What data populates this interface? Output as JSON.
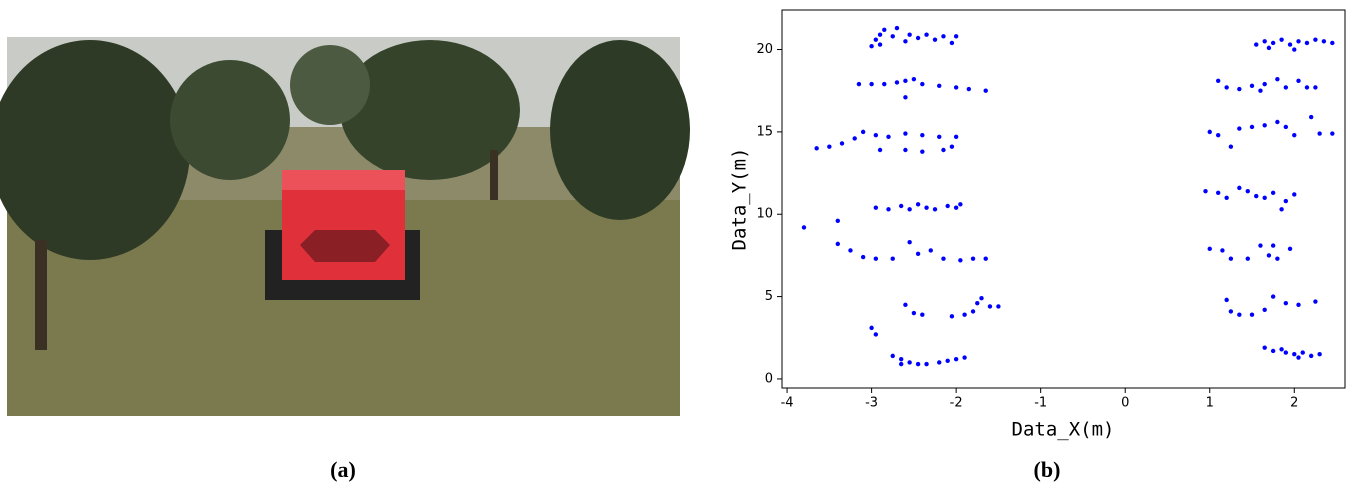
{
  "captions": {
    "a": "(a)",
    "b": "(b)"
  },
  "chart_data": {
    "type": "scatter",
    "xlabel": "Data_X(m)",
    "ylabel": "Data_Y(m)",
    "color": "#0000ff",
    "xlim": [
      -4.06,
      2.6
    ],
    "ylim": [
      -0.55,
      22.4
    ],
    "xticks": [
      -4,
      -3,
      -2,
      -1,
      0,
      1,
      2
    ],
    "yticks": [
      0,
      5,
      10,
      15,
      20
    ],
    "x": [
      -3.0,
      -2.95,
      -2.9,
      -2.85,
      -2.75,
      -2.7,
      -2.6,
      -2.55,
      -2.45,
      -2.35,
      -2.25,
      -2.15,
      -2.05,
      -2.0,
      -2.9,
      -3.15,
      -3.0,
      -2.85,
      -2.7,
      -2.6,
      -2.5,
      -2.6,
      -2.4,
      -2.2,
      -2.0,
      -1.85,
      -1.65,
      -3.65,
      -3.5,
      -3.35,
      -3.2,
      -3.1,
      -2.95,
      -2.8,
      -2.6,
      -2.4,
      -2.2,
      -2.0,
      -2.9,
      -2.6,
      -2.4,
      -2.15,
      -2.05,
      -3.8,
      -3.4,
      -2.95,
      -2.8,
      -2.65,
      -2.55,
      -2.45,
      -2.35,
      -2.25,
      -2.1,
      -2.0,
      -1.95,
      -3.4,
      -3.25,
      -3.1,
      -2.95,
      -2.75,
      -2.55,
      -2.45,
      -2.3,
      -2.15,
      -1.95,
      -1.8,
      -1.65,
      -3.0,
      -2.95,
      -2.6,
      -2.5,
      -2.4,
      -2.05,
      -1.9,
      -1.8,
      -1.7,
      -1.6,
      -1.5,
      -1.75,
      -2.75,
      -2.65,
      -2.55,
      -2.45,
      -2.35,
      -2.2,
      -2.1,
      -2.0,
      -2.65,
      -1.9,
      1.55,
      1.65,
      1.75,
      1.85,
      1.95,
      2.05,
      2.15,
      2.25,
      2.35,
      2.45,
      1.7,
      2.0,
      1.1,
      1.2,
      1.35,
      1.5,
      1.65,
      1.8,
      1.9,
      2.05,
      2.15,
      2.25,
      1.6,
      1.0,
      1.1,
      1.25,
      1.35,
      1.5,
      1.65,
      1.8,
      1.9,
      2.0,
      2.2,
      2.3,
      2.45,
      0.95,
      1.1,
      1.2,
      1.35,
      1.45,
      1.55,
      1.65,
      1.75,
      1.9,
      2.0,
      1.85,
      1.0,
      1.15,
      1.25,
      1.45,
      1.6,
      1.7,
      1.8,
      1.95,
      1.75,
      1.2,
      1.25,
      1.35,
      1.5,
      1.65,
      1.75,
      1.9,
      2.05,
      2.25,
      1.65,
      1.75,
      1.9,
      2.0,
      2.1,
      2.2,
      2.3,
      1.85,
      2.05
    ],
    "values": [
      20.2,
      20.6,
      20.9,
      21.2,
      20.8,
      21.3,
      20.5,
      20.9,
      20.7,
      20.9,
      20.6,
      20.8,
      20.4,
      20.8,
      20.3,
      17.9,
      17.9,
      17.9,
      18.0,
      18.1,
      18.2,
      17.1,
      17.9,
      17.8,
      17.7,
      17.6,
      17.5,
      14.0,
      14.1,
      14.3,
      14.6,
      15.0,
      14.8,
      14.7,
      14.9,
      14.8,
      14.7,
      14.7,
      13.9,
      13.9,
      13.8,
      13.9,
      14.1,
      9.2,
      9.6,
      10.4,
      10.3,
      10.5,
      10.3,
      10.6,
      10.4,
      10.3,
      10.5,
      10.4,
      10.6,
      8.2,
      7.8,
      7.4,
      7.3,
      7.3,
      8.3,
      7.6,
      7.8,
      7.3,
      7.2,
      7.3,
      7.3,
      3.1,
      2.7,
      4.5,
      4.0,
      3.9,
      3.8,
      3.9,
      4.1,
      4.9,
      4.4,
      4.4,
      4.6,
      1.4,
      1.2,
      1.0,
      0.9,
      0.9,
      1.0,
      1.1,
      1.2,
      0.9,
      1.3,
      20.3,
      20.5,
      20.4,
      20.6,
      20.3,
      20.5,
      20.4,
      20.6,
      20.5,
      20.4,
      20.1,
      20.0,
      18.1,
      17.7,
      17.6,
      17.8,
      17.9,
      18.2,
      17.7,
      18.1,
      17.7,
      17.7,
      17.5,
      15.0,
      14.8,
      14.1,
      15.2,
      15.3,
      15.4,
      15.6,
      15.3,
      14.8,
      15.9,
      14.9,
      14.9,
      11.4,
      11.3,
      11.0,
      11.6,
      11.4,
      11.1,
      11.0,
      11.3,
      10.8,
      11.2,
      10.3,
      7.9,
      7.8,
      7.3,
      7.3,
      8.1,
      7.5,
      7.3,
      7.9,
      8.1,
      4.8,
      4.1,
      3.9,
      3.9,
      4.2,
      5.0,
      4.6,
      4.5,
      4.7,
      1.9,
      1.7,
      1.6,
      1.5,
      1.6,
      1.4,
      1.5,
      1.8,
      1.3
    ]
  }
}
